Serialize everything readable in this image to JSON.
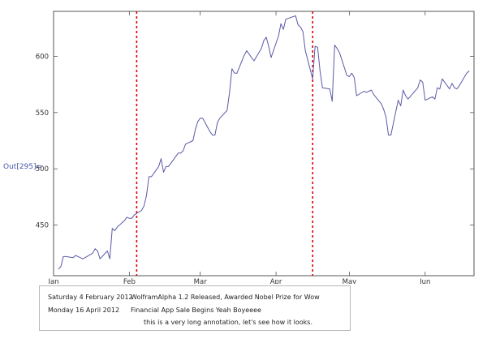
{
  "output_label": "Out[295]=",
  "chart_data": {
    "type": "line",
    "title": "",
    "xlabel": "",
    "ylabel": "",
    "x_range": [
      "2012-01-01",
      "2012-06-21"
    ],
    "ylim": [
      405,
      640
    ],
    "grid": false,
    "x_ticks": [
      {
        "label": "Jan",
        "date": "2012-01-01"
      },
      {
        "label": "Feb",
        "date": "2012-02-01"
      },
      {
        "label": "Mar",
        "date": "2012-03-01"
      },
      {
        "label": "Apr",
        "date": "2012-04-01"
      },
      {
        "label": "May",
        "date": "2012-05-01"
      },
      {
        "label": "Jun",
        "date": "2012-06-01"
      }
    ],
    "y_ticks": [
      450,
      500,
      550,
      600
    ],
    "series": [
      {
        "color": "#5a5aa8",
        "points": [
          [
            "2012-01-03",
            411
          ],
          [
            "2012-01-04",
            413
          ],
          [
            "2012-01-05",
            422
          ],
          [
            "2012-01-06",
            422
          ],
          [
            "2012-01-09",
            421
          ],
          [
            "2012-01-10",
            423
          ],
          [
            "2012-01-11",
            422
          ],
          [
            "2012-01-12",
            421
          ],
          [
            "2012-01-13",
            420
          ],
          [
            "2012-01-17",
            425
          ],
          [
            "2012-01-18",
            429
          ],
          [
            "2012-01-19",
            427
          ],
          [
            "2012-01-20",
            420
          ],
          [
            "2012-01-23",
            427
          ],
          [
            "2012-01-24",
            420
          ],
          [
            "2012-01-25",
            447
          ],
          [
            "2012-01-26",
            445
          ],
          [
            "2012-01-27",
            448
          ],
          [
            "2012-01-30",
            454
          ],
          [
            "2012-01-31",
            457
          ],
          [
            "2012-02-01",
            456
          ],
          [
            "2012-02-02",
            456
          ],
          [
            "2012-02-03",
            459
          ],
          [
            "2012-02-06",
            463
          ],
          [
            "2012-02-07",
            467
          ],
          [
            "2012-02-08",
            476
          ],
          [
            "2012-02-09",
            493
          ],
          [
            "2012-02-10",
            493
          ],
          [
            "2012-02-13",
            502
          ],
          [
            "2012-02-14",
            509
          ],
          [
            "2012-02-15",
            497
          ],
          [
            "2012-02-16",
            502
          ],
          [
            "2012-02-17",
            502
          ],
          [
            "2012-02-21",
            514
          ],
          [
            "2012-02-22",
            514
          ],
          [
            "2012-02-23",
            516
          ],
          [
            "2012-02-24",
            522
          ],
          [
            "2012-02-27",
            525
          ],
          [
            "2012-02-28",
            535
          ],
          [
            "2012-02-29",
            542
          ],
          [
            "2012-03-01",
            545
          ],
          [
            "2012-03-02",
            545
          ],
          [
            "2012-03-05",
            533
          ],
          [
            "2012-03-06",
            530
          ],
          [
            "2012-03-07",
            530
          ],
          [
            "2012-03-08",
            541
          ],
          [
            "2012-03-09",
            545
          ],
          [
            "2012-03-12",
            552
          ],
          [
            "2012-03-13",
            568
          ],
          [
            "2012-03-14",
            589
          ],
          [
            "2012-03-15",
            585
          ],
          [
            "2012-03-16",
            585
          ],
          [
            "2012-03-19",
            601
          ],
          [
            "2012-03-20",
            605
          ],
          [
            "2012-03-21",
            602
          ],
          [
            "2012-03-22",
            599
          ],
          [
            "2012-03-23",
            596
          ],
          [
            "2012-03-26",
            607
          ],
          [
            "2012-03-27",
            614
          ],
          [
            "2012-03-28",
            617
          ],
          [
            "2012-03-29",
            609
          ],
          [
            "2012-03-30",
            599
          ],
          [
            "2012-04-02",
            618
          ],
          [
            "2012-04-03",
            629
          ],
          [
            "2012-04-04",
            624
          ],
          [
            "2012-04-05",
            633
          ],
          [
            "2012-04-09",
            636
          ],
          [
            "2012-04-10",
            628
          ],
          [
            "2012-04-11",
            626
          ],
          [
            "2012-04-12",
            622
          ],
          [
            "2012-04-13",
            605
          ],
          [
            "2012-04-16",
            580
          ],
          [
            "2012-04-17",
            609
          ],
          [
            "2012-04-18",
            608
          ],
          [
            "2012-04-19",
            587
          ],
          [
            "2012-04-20",
            572
          ],
          [
            "2012-04-23",
            571
          ],
          [
            "2012-04-24",
            560
          ],
          [
            "2012-04-25",
            610
          ],
          [
            "2012-04-26",
            607
          ],
          [
            "2012-04-27",
            603
          ],
          [
            "2012-04-30",
            583
          ],
          [
            "2012-05-01",
            582
          ],
          [
            "2012-05-02",
            585
          ],
          [
            "2012-05-03",
            581
          ],
          [
            "2012-05-04",
            565
          ],
          [
            "2012-05-07",
            569
          ],
          [
            "2012-05-08",
            568
          ],
          [
            "2012-05-09",
            569
          ],
          [
            "2012-05-10",
            570
          ],
          [
            "2012-05-11",
            566
          ],
          [
            "2012-05-14",
            558
          ],
          [
            "2012-05-15",
            553
          ],
          [
            "2012-05-16",
            546
          ],
          [
            "2012-05-17",
            530
          ],
          [
            "2012-05-18",
            530
          ],
          [
            "2012-05-21",
            561
          ],
          [
            "2012-05-22",
            556
          ],
          [
            "2012-05-23",
            570
          ],
          [
            "2012-05-24",
            565
          ],
          [
            "2012-05-25",
            562
          ],
          [
            "2012-05-29",
            572
          ],
          [
            "2012-05-30",
            579
          ],
          [
            "2012-05-31",
            577
          ],
          [
            "2012-06-01",
            561
          ],
          [
            "2012-06-04",
            564
          ],
          [
            "2012-06-05",
            562
          ],
          [
            "2012-06-06",
            572
          ],
          [
            "2012-06-07",
            571
          ],
          [
            "2012-06-08",
            580
          ],
          [
            "2012-06-11",
            571
          ],
          [
            "2012-06-12",
            576
          ],
          [
            "2012-06-13",
            572
          ],
          [
            "2012-06-14",
            571
          ],
          [
            "2012-06-15",
            574
          ],
          [
            "2012-06-18",
            585
          ],
          [
            "2012-06-19",
            587
          ]
        ]
      }
    ],
    "event_lines": [
      {
        "date": "2012-02-04",
        "color": "#dd0000"
      },
      {
        "date": "2012-04-16",
        "color": "#dd0000"
      }
    ]
  },
  "annotations": {
    "dates": [
      "Saturday 4 February 2012",
      "Monday 16 April 2012"
    ],
    "events": [
      "WolframAlpha 1.2 Released, Awarded Nobel Prize for Wow",
      "Financial App Sale Begins Yeah Boyeeee",
      "this is a very long annotation, let's see how it looks."
    ]
  }
}
